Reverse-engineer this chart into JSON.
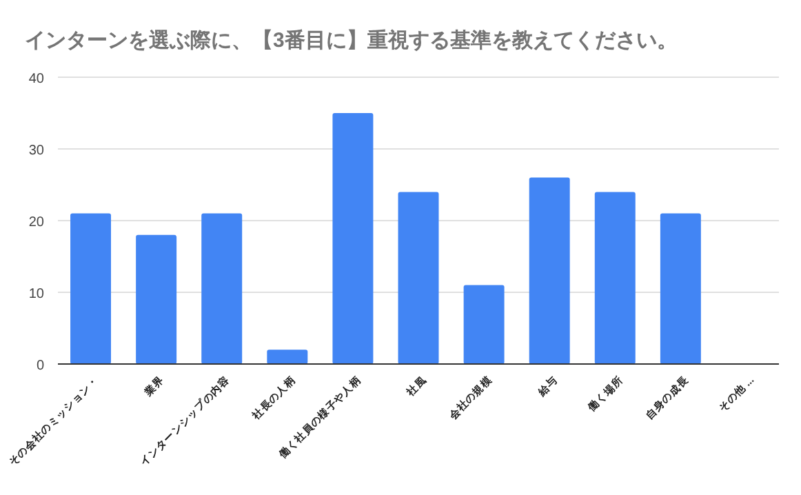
{
  "chart_data": {
    "type": "bar",
    "title": "インターンを選ぶ際に、【3番目に】重視する基準を教えてください。",
    "categories": [
      "その会社のミッション・",
      "業界",
      "インターンシップの内容",
      "社長の人柄",
      "働く社員の様子や人柄",
      "社風",
      "会社の規模",
      "給与",
      "働く場所",
      "自身の成長",
      "その他 ..."
    ],
    "values": [
      21,
      18,
      21,
      2,
      35,
      24,
      11,
      26,
      24,
      21,
      0
    ],
    "color": "#4285f4",
    "ylim": [
      0,
      40
    ],
    "yticks": [
      0,
      10,
      20,
      30,
      40
    ],
    "grid": "y"
  }
}
